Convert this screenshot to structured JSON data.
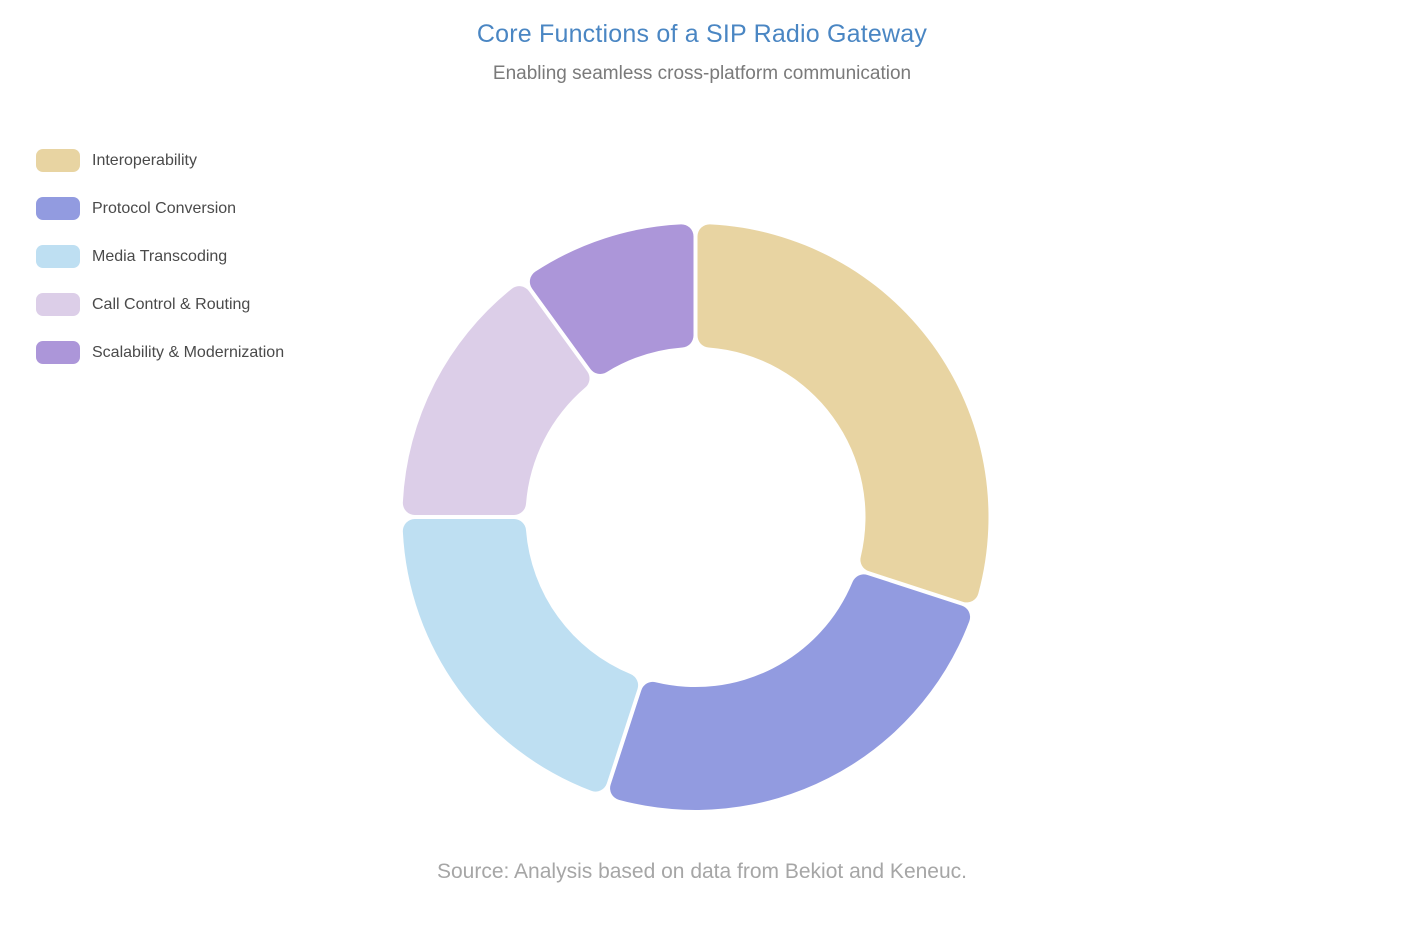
{
  "chart_data": {
    "type": "pie",
    "variant": "donut",
    "title": "Core Functions of a SIP Radio Gateway",
    "subtitle": "Enabling seamless cross-platform communication",
    "source_note": "Source: Analysis based on data from Bekiot and Keneuc.",
    "unit": "percent",
    "total": 100,
    "start_angle_deg": 0,
    "clockwise": true,
    "legend_position": "top-left",
    "segments": [
      {
        "label": "Interoperability",
        "value": 30,
        "color": "#e8d4a2"
      },
      {
        "label": "Protocol Conversion",
        "value": 25,
        "color": "#929be0"
      },
      {
        "label": "Media Transcoding",
        "value": 20,
        "color": "#bedff2"
      },
      {
        "label": "Call Control & Routing",
        "value": 15,
        "color": "#dccee8"
      },
      {
        "label": "Scalability & Modernization",
        "value": 10,
        "color": "#ac96d9"
      }
    ]
  },
  "styles": {
    "title_color": "#4a86c3",
    "subtitle_color": "#7a7a7a",
    "legend_text_color": "#4a4a4a",
    "source_color": "#a6a6a6",
    "background_color": "#ffffff"
  }
}
